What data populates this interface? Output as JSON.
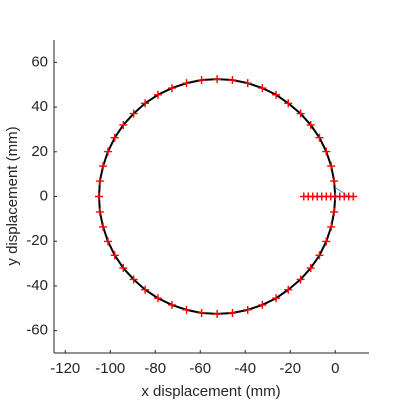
{
  "chart_data": {
    "type": "scatter",
    "xlabel": "x displacement (mm)",
    "ylabel": "y displacement (mm)",
    "xlim": [
      -125,
      15
    ],
    "ylim": [
      -70,
      70
    ],
    "xticks": [
      -120,
      -100,
      -80,
      -60,
      -40,
      -20,
      0
    ],
    "yticks": [
      -60,
      -40,
      -20,
      0,
      20,
      40,
      60
    ],
    "series": [
      {
        "kind": "line",
        "color": "#000000",
        "x": [
          0,
          -0.5,
          -1.8,
          -4.0,
          -7.0,
          -10.9,
          -15.4,
          -20.9,
          -26.3,
          -32.4,
          -38.9,
          -45.7,
          -52.5,
          -59.4,
          -66.1,
          -72.6,
          -78.8,
          -84.5,
          -89.6,
          -94.2,
          -98.0,
          -101.0,
          -103.2,
          -104.6,
          -105.0,
          -104.6,
          -103.2,
          -101.0,
          -98.0,
          -94.2,
          -89.6,
          -84.5,
          -78.8,
          -72.6,
          -66.1,
          -59.4,
          -52.5,
          -45.7,
          -38.9,
          -32.4,
          -26.3,
          -20.9,
          -15.4,
          -10.9,
          -7.0,
          -4.0,
          -1.8,
          -0.5,
          0
        ],
        "values": [
          0,
          6.9,
          13.6,
          20.1,
          26.3,
          32.0,
          37.1,
          41.7,
          45.5,
          48.5,
          50.7,
          52.1,
          52.5,
          52.1,
          50.7,
          48.5,
          45.5,
          41.7,
          37.1,
          32.0,
          26.3,
          20.1,
          13.6,
          6.9,
          0,
          -6.9,
          -13.6,
          -20.1,
          -26.3,
          -32.0,
          -37.1,
          -41.7,
          -45.5,
          -48.5,
          -50.7,
          -52.1,
          -52.5,
          -52.1,
          -50.7,
          -48.5,
          -45.5,
          -41.7,
          -37.1,
          -32.0,
          -26.3,
          -20.1,
          -13.6,
          -6.9,
          0
        ]
      },
      {
        "kind": "line",
        "color": "#3aa0d8",
        "x": [
          0,
          6
        ],
        "values": [
          4,
          0
        ]
      },
      {
        "kind": "marker",
        "color": "#ff0000",
        "x": [
          0,
          -0.5,
          -1.8,
          -4.0,
          -7.0,
          -10.9,
          -15.4,
          -20.9,
          -26.3,
          -32.4,
          -38.9,
          -45.7,
          -52.5,
          -59.4,
          -66.1,
          -72.6,
          -78.8,
          -84.5,
          -89.6,
          -94.2,
          -98.0,
          -101.0,
          -103.2,
          -104.6,
          -105.0,
          -104.6,
          -103.2,
          -101.0,
          -98.0,
          -94.2,
          -89.6,
          -84.5,
          -78.8,
          -72.6,
          -66.1,
          -59.4,
          -52.5,
          -45.7,
          -38.9,
          -32.4,
          -26.3,
          -20.9,
          -15.4,
          -10.9,
          -7.0,
          -4.0,
          -1.8,
          -0.5
        ],
        "values": [
          0,
          6.9,
          13.6,
          20.1,
          26.3,
          32.0,
          37.1,
          41.7,
          45.5,
          48.5,
          50.7,
          52.1,
          52.5,
          52.1,
          50.7,
          48.5,
          45.5,
          41.7,
          37.1,
          32.0,
          26.3,
          20.1,
          13.6,
          6.9,
          0,
          -6.9,
          -13.6,
          -20.1,
          -26.3,
          -32.0,
          -37.1,
          -41.7,
          -45.5,
          -48.5,
          -50.7,
          -52.1,
          -52.5,
          -52.1,
          -50.7,
          -48.5,
          -45.5,
          -41.7,
          -37.1,
          -32.0,
          -26.3,
          -20.1,
          -13.6,
          -6.9
        ]
      },
      {
        "kind": "marker",
        "color": "#ff0000",
        "x": [
          -14,
          -12,
          -10,
          -8,
          -6,
          -4,
          -2,
          0,
          2,
          4,
          6,
          8
        ],
        "values": [
          0,
          0,
          0,
          0,
          0,
          0,
          0,
          0,
          0,
          0,
          0,
          0
        ]
      }
    ]
  }
}
